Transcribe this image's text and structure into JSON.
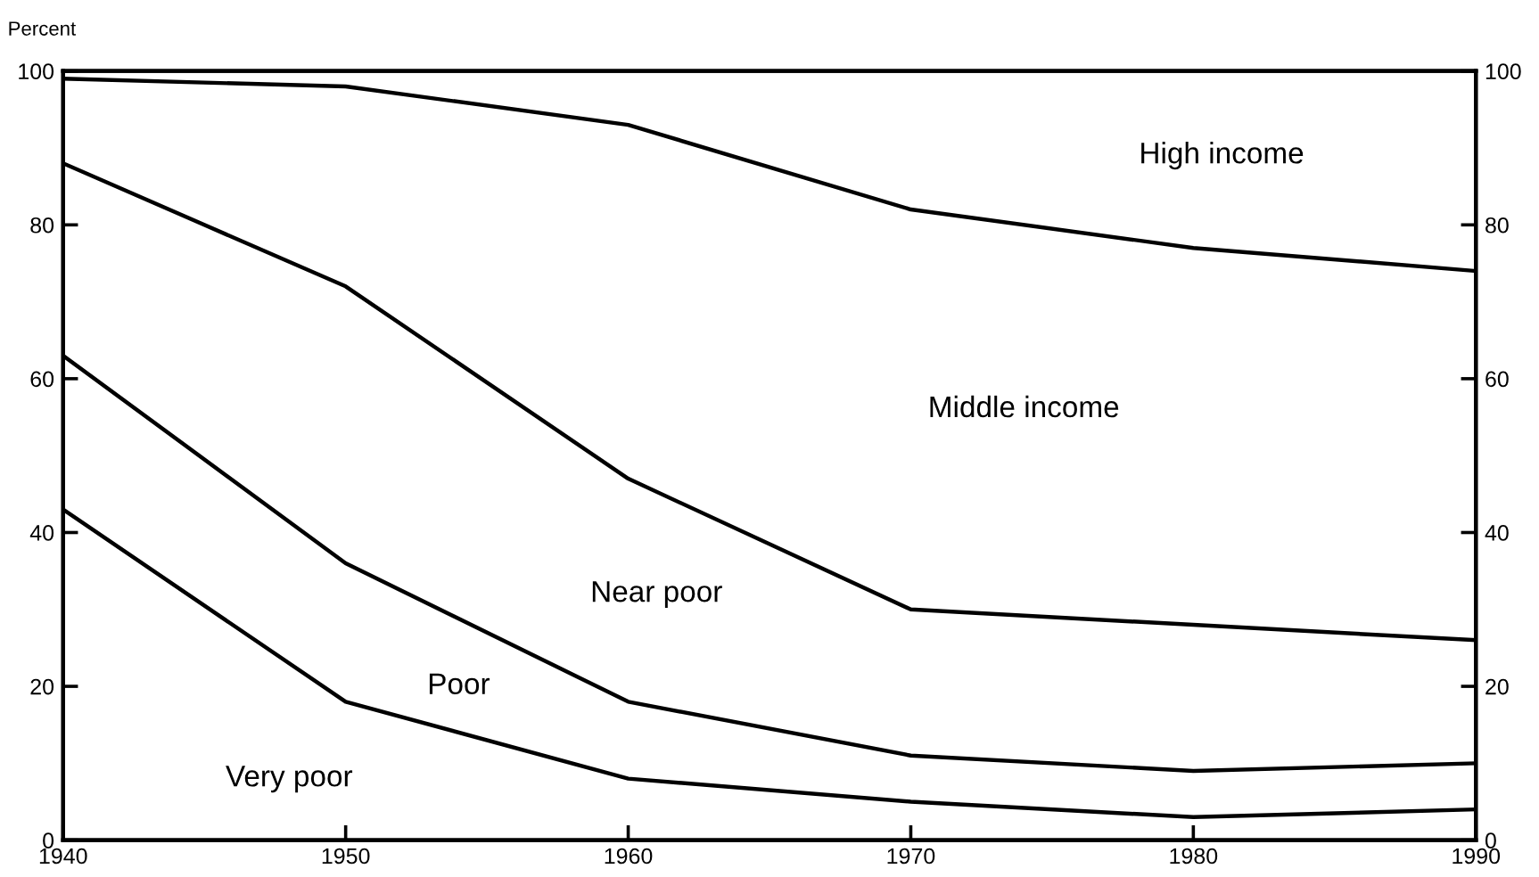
{
  "chart_data": {
    "type": "line",
    "ylabel": "Percent",
    "x": [
      1940,
      1950,
      1960,
      1970,
      1980,
      1990
    ],
    "series": [
      {
        "color": "#000000",
        "values": [
          99,
          98,
          93,
          82,
          77,
          74
        ]
      },
      {
        "color": "#000000",
        "values": [
          88,
          72,
          47,
          30,
          28,
          26
        ]
      },
      {
        "color": "#000000",
        "values": [
          63,
          36,
          18,
          11,
          9,
          10
        ]
      },
      {
        "color": "#000000",
        "values": [
          43,
          18,
          8,
          5,
          3,
          4
        ]
      }
    ],
    "xlim": [
      1940,
      1990
    ],
    "xticks": [
      1940,
      1950,
      1960,
      1970,
      1980,
      1990
    ],
    "ylim": [
      0,
      100
    ],
    "yticks": [
      0,
      20,
      40,
      60,
      80,
      100
    ],
    "y2lim": [
      0,
      100
    ],
    "y2ticks": [
      0,
      20,
      40,
      60,
      80,
      100
    ],
    "marker": "none",
    "line_style": "solid",
    "grid": false,
    "legend": false,
    "annotations": [
      "High income",
      "Middle income",
      "Near poor",
      "Poor",
      "Very poor"
    ]
  }
}
